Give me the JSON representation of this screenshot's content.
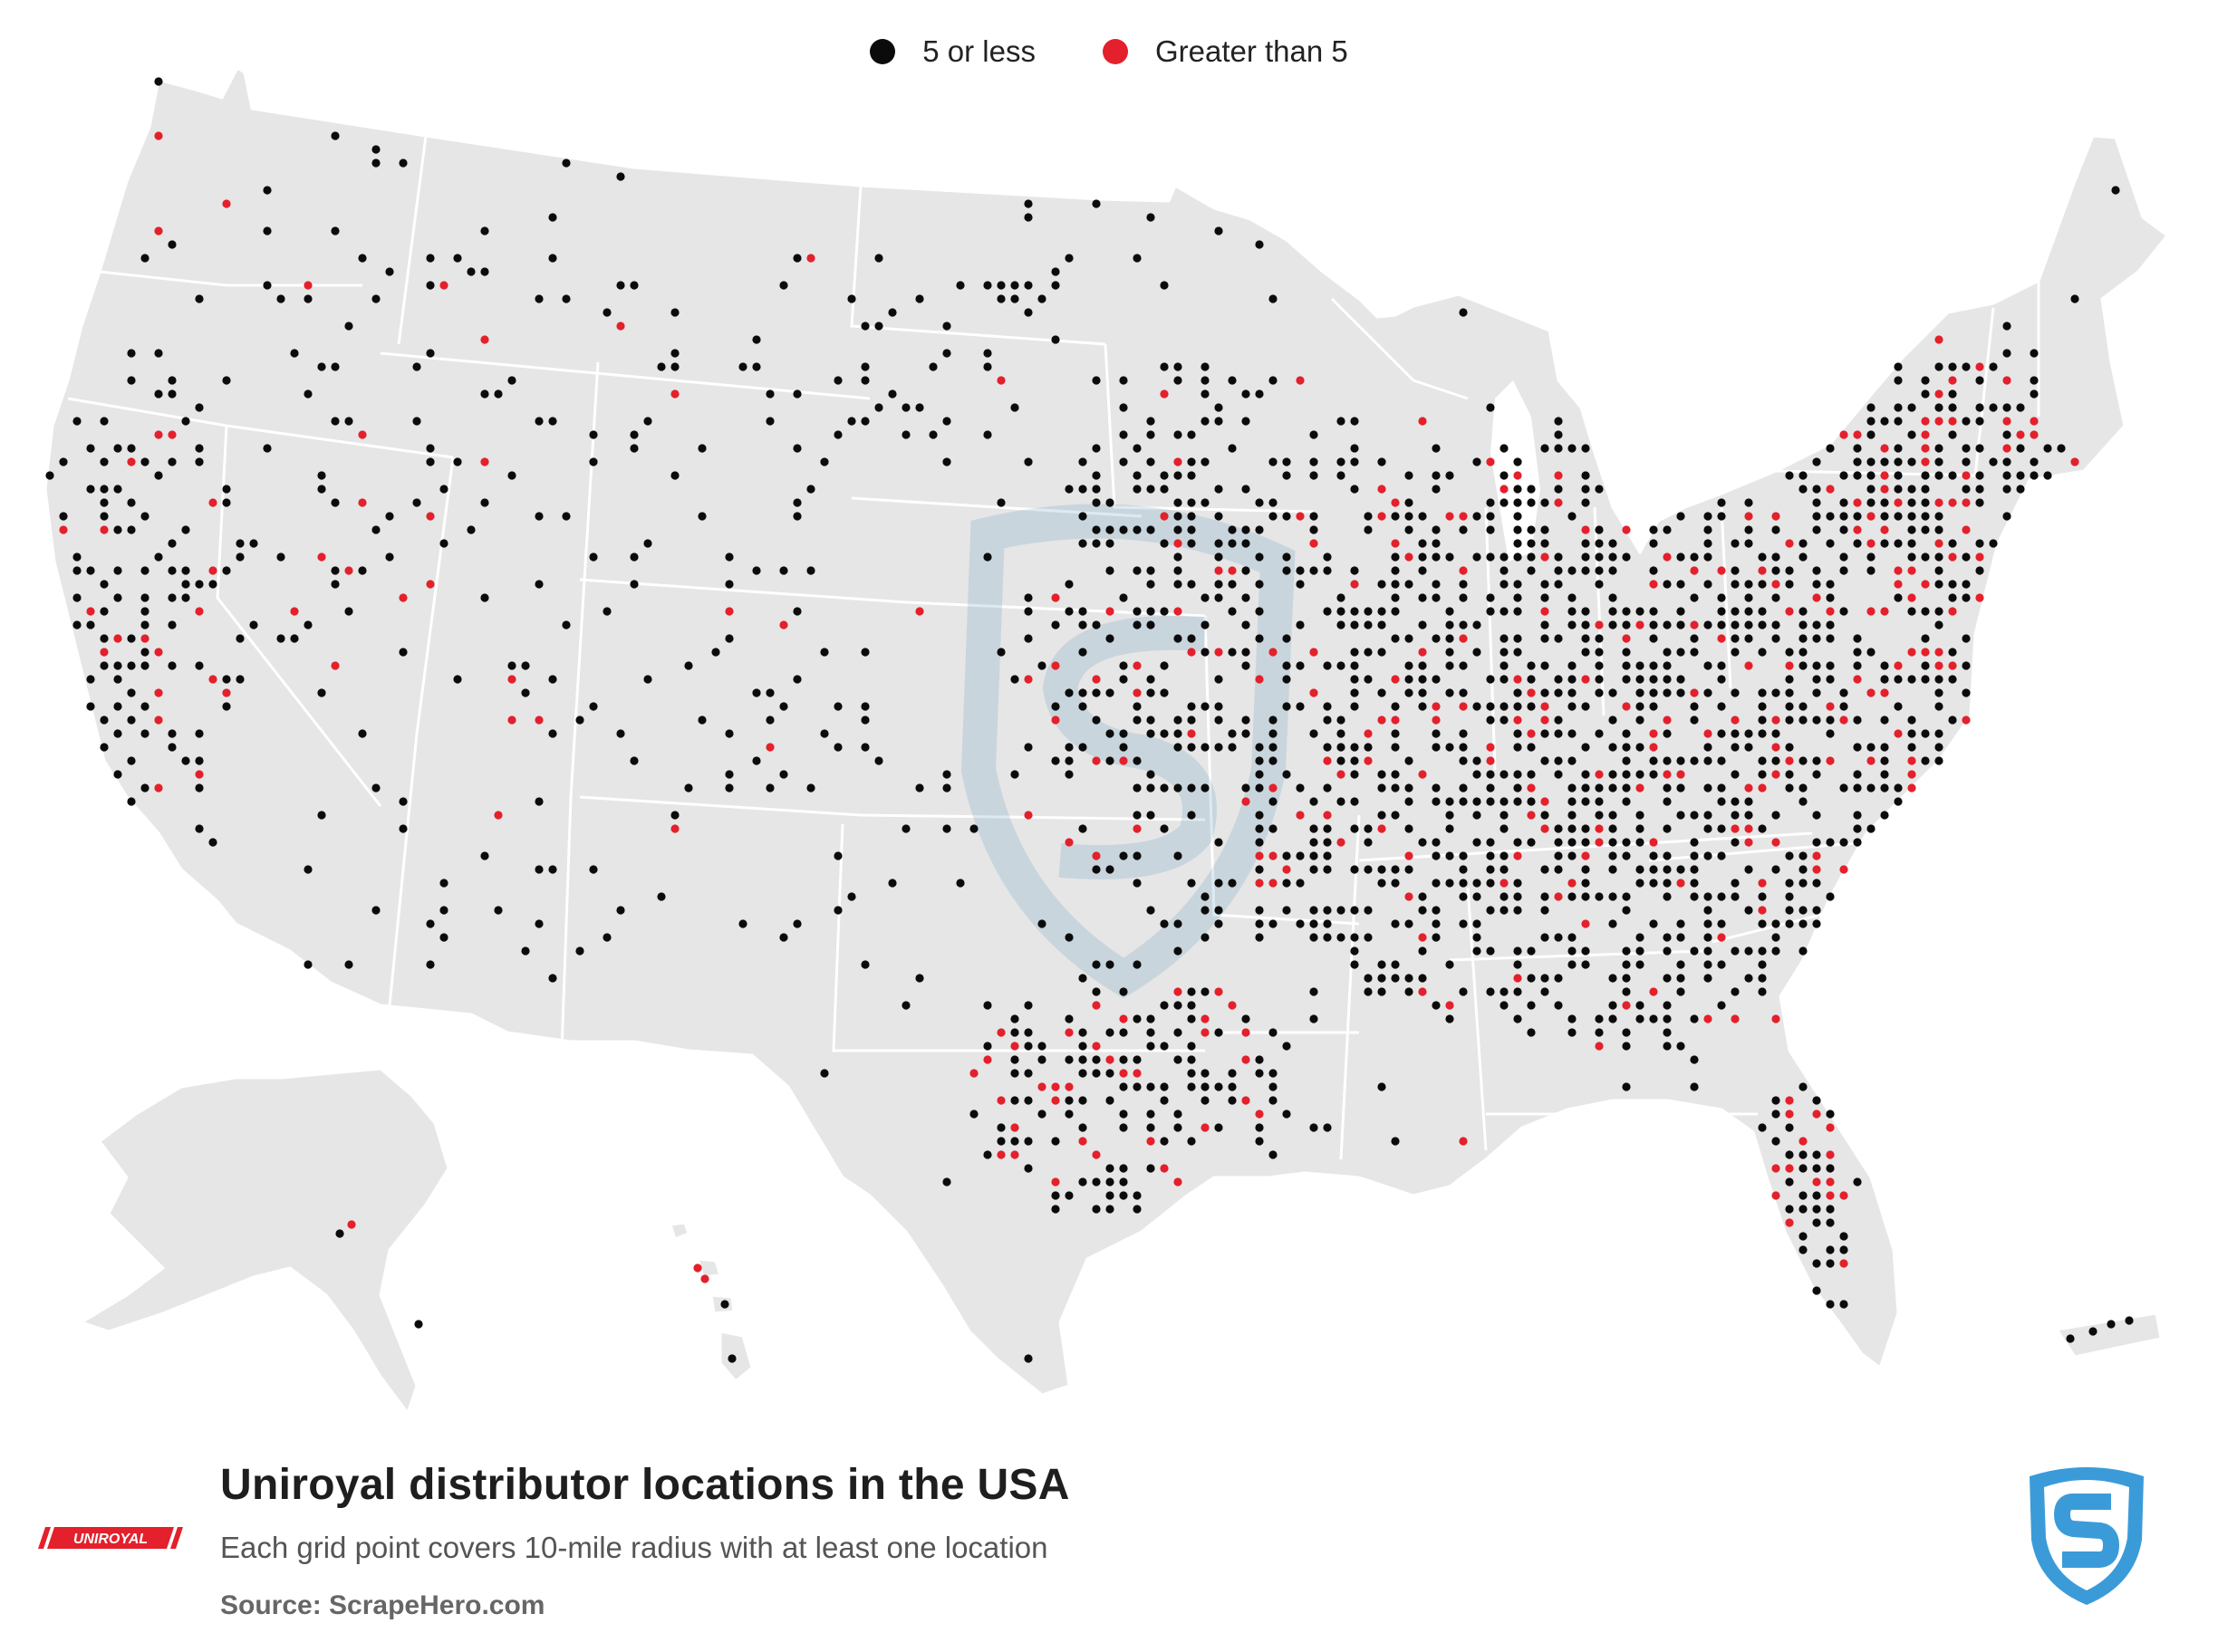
{
  "legend": {
    "items": [
      {
        "label": "5 or less",
        "color": "#0b0b0b"
      },
      {
        "label": "Greater than 5",
        "color": "#e3202b"
      }
    ]
  },
  "title": "Uniroyal distributor locations in the USA",
  "subtitle": "Each grid point covers 10-mile radius with at least one location",
  "source": "Source: ScrapeHero.com",
  "brand_logo": {
    "text": "UNIROYAL",
    "color": "#e3202b"
  },
  "colors": {
    "land": "#e6e6e6",
    "border": "#ffffff",
    "low": "#0b0b0b",
    "high": "#e3202b",
    "logo_blue": "#3b9bd9"
  },
  "icons": {
    "brand": "uniroyal-logo-icon",
    "publisher": "scrapehero-shield-icon"
  }
}
